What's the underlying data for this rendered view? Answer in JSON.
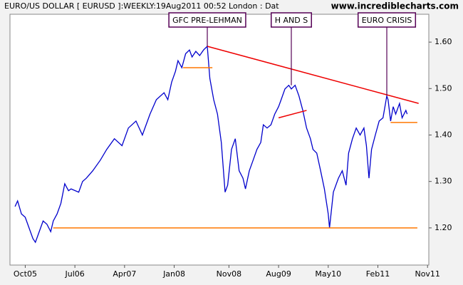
{
  "chart_data": {
    "type": "line",
    "title": "EURO/US DOLLAR [ EURUSD ]:WEEKLY:19Aug2011 00:52 London : Dat",
    "watermark": "www.incrediblecharts.com",
    "x": [
      -8,
      -6,
      -3,
      0,
      3,
      6,
      8,
      11,
      14,
      17,
      20,
      22,
      25,
      28,
      31,
      34,
      36,
      42,
      45,
      48,
      53,
      59,
      64,
      70,
      76,
      81,
      87,
      92,
      98,
      103,
      109,
      112,
      115,
      118,
      120,
      123,
      126,
      129,
      131,
      134,
      137,
      140,
      143,
      145,
      148,
      151,
      154,
      157,
      159,
      162,
      165,
      168,
      171,
      173,
      176,
      179,
      182,
      185,
      187,
      190,
      193,
      196,
      199,
      201,
      204,
      207,
      209,
      212,
      215,
      218,
      221,
      224,
      226,
      229,
      232,
      235,
      238,
      239,
      242,
      246,
      249,
      252,
      254,
      257,
      260,
      263,
      266,
      268,
      270,
      272,
      275,
      278,
      281,
      284,
      285,
      287,
      289,
      291,
      294,
      296,
      299,
      300
    ],
    "series": [
      {
        "name": "EURUSD",
        "color": "#0000cc",
        "values": [
          1.246,
          1.258,
          1.23,
          1.223,
          1.2,
          1.177,
          1.169,
          1.192,
          1.215,
          1.208,
          1.192,
          1.215,
          1.23,
          1.253,
          1.295,
          1.28,
          1.284,
          1.277,
          1.3,
          1.307,
          1.323,
          1.346,
          1.369,
          1.392,
          1.377,
          1.415,
          1.43,
          1.4,
          1.445,
          1.476,
          1.491,
          1.476,
          1.514,
          1.537,
          1.56,
          1.545,
          1.575,
          1.583,
          1.568,
          1.58,
          1.571,
          1.583,
          1.591,
          1.522,
          1.476,
          1.445,
          1.384,
          1.277,
          1.292,
          1.369,
          1.392,
          1.323,
          1.307,
          1.284,
          1.323,
          1.346,
          1.369,
          1.384,
          1.422,
          1.415,
          1.422,
          1.445,
          1.461,
          1.476,
          1.499,
          1.507,
          1.499,
          1.507,
          1.484,
          1.453,
          1.415,
          1.392,
          1.369,
          1.361,
          1.323,
          1.284,
          1.23,
          1.2,
          1.277,
          1.307,
          1.323,
          1.292,
          1.361,
          1.392,
          1.415,
          1.4,
          1.415,
          1.377,
          1.307,
          1.369,
          1.4,
          1.43,
          1.437,
          1.484,
          1.476,
          1.43,
          1.461,
          1.445,
          1.468,
          1.437,
          1.453,
          1.445
        ]
      }
    ],
    "lines": [
      {
        "color": "#ee0000",
        "x": [
          143,
          309
        ],
        "values": [
          1.591,
          1.468
        ]
      },
      {
        "color": "#ee0000",
        "x": [
          199,
          221
        ],
        "values": [
          1.437,
          1.453
        ]
      },
      {
        "color": "#ff7700",
        "x": [
          124,
          147
        ],
        "values": [
          1.545,
          1.545
        ]
      },
      {
        "color": "#ff7700",
        "x": [
          22,
          308
        ],
        "values": [
          1.2,
          1.2
        ]
      },
      {
        "color": "#ff7700",
        "x": [
          287,
          308
        ],
        "values": [
          1.427,
          1.427
        ]
      }
    ],
    "annotations": [
      {
        "text": "GFC PRE-LEHMAN",
        "x": 143,
        "y": 1.591
      },
      {
        "text": "H AND S",
        "x": 209,
        "y": 1.507
      },
      {
        "text": "EURO CRISIS",
        "x": 284,
        "y": 1.484
      }
    ],
    "xlim": [
      -12,
      317
    ],
    "xticks": [
      {
        "value": 0,
        "label": "Oct05"
      },
      {
        "value": 39,
        "label": "Jul06"
      },
      {
        "value": 78,
        "label": "Apr07"
      },
      {
        "value": 117,
        "label": "Jan08"
      },
      {
        "value": 160,
        "label": "Nov08"
      },
      {
        "value": 199,
        "label": "Aug09"
      },
      {
        "value": 238,
        "label": "May10"
      },
      {
        "value": 277,
        "label": "Feb11"
      },
      {
        "value": 316,
        "label": "Nov11"
      }
    ],
    "ylim": [
      1.12,
      1.66
    ],
    "yticks": [
      {
        "value": 1.2,
        "label": "1.20"
      },
      {
        "value": 1.3,
        "label": "1.30"
      },
      {
        "value": 1.4,
        "label": "1.40"
      },
      {
        "value": 1.5,
        "label": "1.50"
      },
      {
        "value": 1.6,
        "label": "1.60"
      }
    ]
  }
}
